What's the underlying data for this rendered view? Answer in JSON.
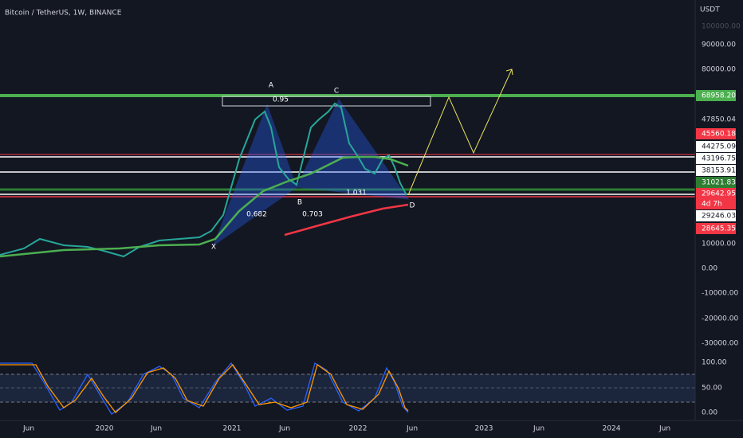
{
  "header": {
    "title": "Bitcoin / TetherUS, 1W, BINANCE",
    "currency": "USDT"
  },
  "price_axis": [
    "100000.00",
    "90000.00",
    "80000.00",
    "68958.20",
    "47850.04",
    "45560.18",
    "44275.09",
    "43196.75",
    "38153.91",
    "31021.83",
    "29642.95",
    "4d 7h",
    "29246.03",
    "28645.35",
    "10000.00",
    "0.00",
    "-10000.00",
    "-20000.00",
    "-30000.00",
    "100.00",
    "50.00",
    "0.00"
  ],
  "time_axis": [
    "Jun",
    "2020",
    "Jun",
    "2021",
    "Jun",
    "2022",
    "Jun",
    "2023",
    "Jun",
    "2024",
    "Jun"
  ],
  "pattern_labels": [
    "A",
    "C",
    "0.95",
    "B",
    "1.031",
    "0.682",
    "0.703",
    "X",
    "D"
  ]
}
